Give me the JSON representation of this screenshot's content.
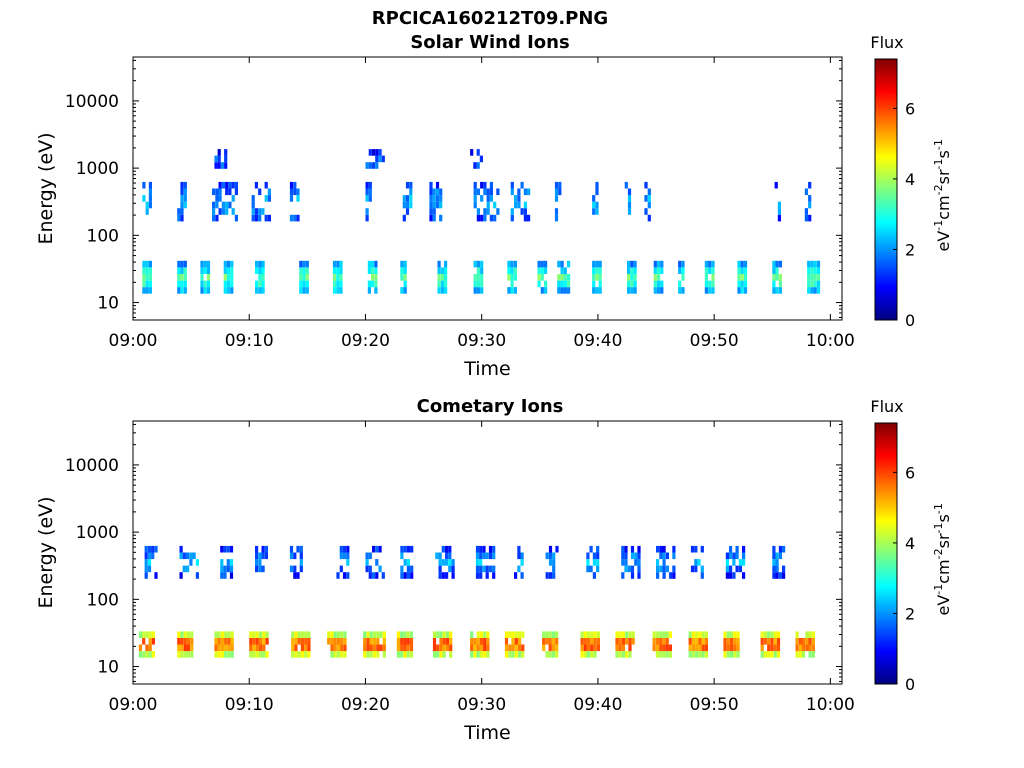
{
  "figure": {
    "title": "RPCICA160212T09.PNG"
  },
  "colors": {
    "colormap": [
      "#00007f",
      "#0000ff",
      "#007fff",
      "#00ffff",
      "#7fff7f",
      "#ffff00",
      "#ff7f00",
      "#ff0000",
      "#7f0000"
    ]
  },
  "chart_data": [
    {
      "type": "heatmap",
      "title": "Solar Wind Ions",
      "xlabel": "Time",
      "ylabel": "Energy (eV)",
      "xlim": [
        "09:00",
        "10:01"
      ],
      "x_ticks": [
        "09:00",
        "09:10",
        "09:20",
        "09:30",
        "09:40",
        "09:50",
        "10:00"
      ],
      "y_scale": "log",
      "ylim": [
        5.5,
        45000
      ],
      "y_ticks": [
        10,
        100,
        1000,
        10000
      ],
      "y_tick_labels": [
        "10",
        "100",
        "1000",
        "10000"
      ],
      "colorbar": {
        "title": "Flux",
        "label": "eV-1cm-2sr-1s-1",
        "range": [
          0,
          7.4
        ],
        "ticks": [
          0,
          2,
          4,
          6
        ]
      },
      "grid": false,
      "data_regions": [
        {
          "t": [
            [
              0.8,
              1.6
            ],
            [
              3.8,
              4.5
            ],
            [
              5.8,
              6.6
            ],
            [
              7.8,
              8.6
            ],
            [
              10.5,
              11.2
            ],
            [
              14.3,
              15.0
            ],
            [
              17.2,
              18.0
            ],
            [
              20.2,
              20.9
            ],
            [
              23.0,
              23.5
            ],
            [
              26.2,
              27.0
            ],
            [
              29.3,
              30.1
            ],
            [
              32.2,
              33.0
            ],
            [
              34.8,
              35.6
            ],
            [
              36.5,
              37.5
            ],
            [
              39.5,
              40.3
            ],
            [
              42.5,
              43.2
            ],
            [
              44.8,
              45.6
            ],
            [
              46.9,
              47.4
            ],
            [
              49.2,
              49.9
            ],
            [
              52.0,
              52.7
            ],
            [
              55.0,
              55.8
            ],
            [
              58.0,
              58.9
            ]
          ],
          "e": [
            12,
            35
          ],
          "flux": 3.5
        },
        {
          "t": [
            [
              0.8,
              1.6
            ],
            [
              3.8,
              4.5
            ],
            [
              6.8,
              8.8
            ],
            [
              10.2,
              11.6
            ],
            [
              13.5,
              14.2
            ],
            [
              20.0,
              20.6
            ],
            [
              23.2,
              24.0
            ],
            [
              25.5,
              26.5
            ],
            [
              29.3,
              31.5
            ],
            [
              32.5,
              34.0
            ],
            [
              36.3,
              36.8
            ],
            [
              39.5,
              40.0
            ],
            [
              42.3,
              42.7
            ],
            [
              44.0,
              44.4
            ],
            [
              55.2,
              55.7
            ],
            [
              57.8,
              58.3
            ]
          ],
          "e": [
            150,
            500
          ],
          "flux": 2.3
        },
        {
          "t": [
            [
              7.0,
              8.0
            ],
            [
              20.0,
              21.5
            ],
            [
              29.0,
              30.0
            ]
          ],
          "e": [
            800,
            1600
          ],
          "flux": 1.8
        }
      ]
    },
    {
      "type": "heatmap",
      "title": "Cometary Ions",
      "xlabel": "Time",
      "ylabel": "Energy (eV)",
      "xlim": [
        "09:00",
        "10:01"
      ],
      "x_ticks": [
        "09:00",
        "09:10",
        "09:20",
        "09:30",
        "09:40",
        "09:50",
        "10:00"
      ],
      "y_scale": "log",
      "ylim": [
        5.5,
        45000
      ],
      "y_ticks": [
        10,
        100,
        1000,
        10000
      ],
      "y_tick_labels": [
        "10",
        "100",
        "1000",
        "10000"
      ],
      "colorbar": {
        "title": "Flux",
        "label": "eV-1cm-2sr-1s-1",
        "range": [
          0,
          7.4
        ],
        "ticks": [
          0,
          2,
          4,
          6
        ]
      },
      "grid": false,
      "data_regions": [
        {
          "t": [
            [
              0.5,
              1.8
            ],
            [
              3.8,
              5.0
            ],
            [
              7.0,
              8.5
            ],
            [
              10.0,
              11.5
            ],
            [
              13.6,
              15.0
            ],
            [
              16.7,
              18.3
            ],
            [
              19.8,
              21.5
            ],
            [
              22.7,
              24.0
            ],
            [
              25.8,
              27.3
            ],
            [
              29.0,
              30.6
            ],
            [
              32.0,
              33.6
            ],
            [
              35.2,
              36.6
            ],
            [
              38.5,
              40.0
            ],
            [
              41.5,
              43.0
            ],
            [
              44.7,
              46.2
            ],
            [
              47.8,
              49.3
            ],
            [
              50.8,
              52.2
            ],
            [
              54.0,
              55.5
            ],
            [
              57.0,
              58.5
            ]
          ],
          "e": [
            12,
            30
          ],
          "flux": 6.3
        },
        {
          "t": [
            [
              1.0,
              2.0
            ],
            [
              4.0,
              5.5
            ],
            [
              7.5,
              8.5
            ],
            [
              10.5,
              11.5
            ],
            [
              13.5,
              14.5
            ],
            [
              17.5,
              18.5
            ],
            [
              20.0,
              21.5
            ],
            [
              23.0,
              24.0
            ],
            [
              26.0,
              27.5
            ],
            [
              29.5,
              31.0
            ],
            [
              32.5,
              33.5
            ],
            [
              35.5,
              36.5
            ],
            [
              39.0,
              40.0
            ],
            [
              42.0,
              43.5
            ],
            [
              45.0,
              46.5
            ],
            [
              48.0,
              49.0
            ],
            [
              51.0,
              52.5
            ],
            [
              55.0,
              56.0
            ]
          ],
          "e": [
            200,
            500
          ],
          "flux": 2.2
        }
      ]
    }
  ]
}
